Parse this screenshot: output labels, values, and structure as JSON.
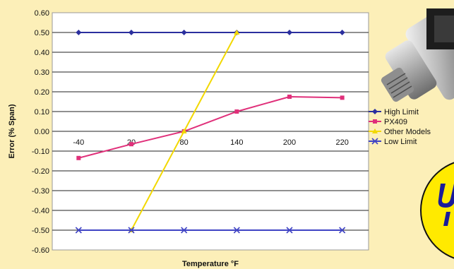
{
  "chart_data": {
    "type": "line",
    "categories": [
      "-40",
      "20",
      "80",
      "140",
      "200",
      "220"
    ],
    "ylabel": "Error (% Span)",
    "xlabel": "Temperature °F",
    "ylim": [
      -0.6,
      0.6
    ],
    "yticks": [
      "0.60",
      "0.50",
      "0.40",
      "0.30",
      "0.20",
      "0.10",
      "0.00",
      "-0.10",
      "-0.20",
      "-0.30",
      "-0.40",
      "-0.50",
      "-0.60"
    ],
    "grid": "horizontal",
    "legend_position": "right",
    "series": [
      {
        "name": "High Limit",
        "color": "#2b2f9e",
        "marker": "diamond",
        "values": [
          0.5,
          0.5,
          0.5,
          0.5,
          0.5,
          0.5
        ]
      },
      {
        "name": "PX409",
        "color": "#e0307a",
        "marker": "square",
        "values": [
          -0.135,
          -0.065,
          0.0,
          0.1,
          0.175,
          0.17
        ]
      },
      {
        "name": "Other Models",
        "color": "#f2d800",
        "marker": "triangle",
        "values": [
          null,
          -0.5,
          0.0,
          0.5,
          null,
          null
        ]
      },
      {
        "name": "Low Limit",
        "color": "#3f43c4",
        "marker": "x",
        "values": [
          -0.5,
          -0.5,
          -0.5,
          -0.5,
          -0.5,
          -0.5
        ]
      }
    ]
  },
  "decor": {
    "product_image": "pressure-transducer-photo",
    "badge_color": "#ffea00",
    "badge_text_color": "#1a1a9a"
  }
}
